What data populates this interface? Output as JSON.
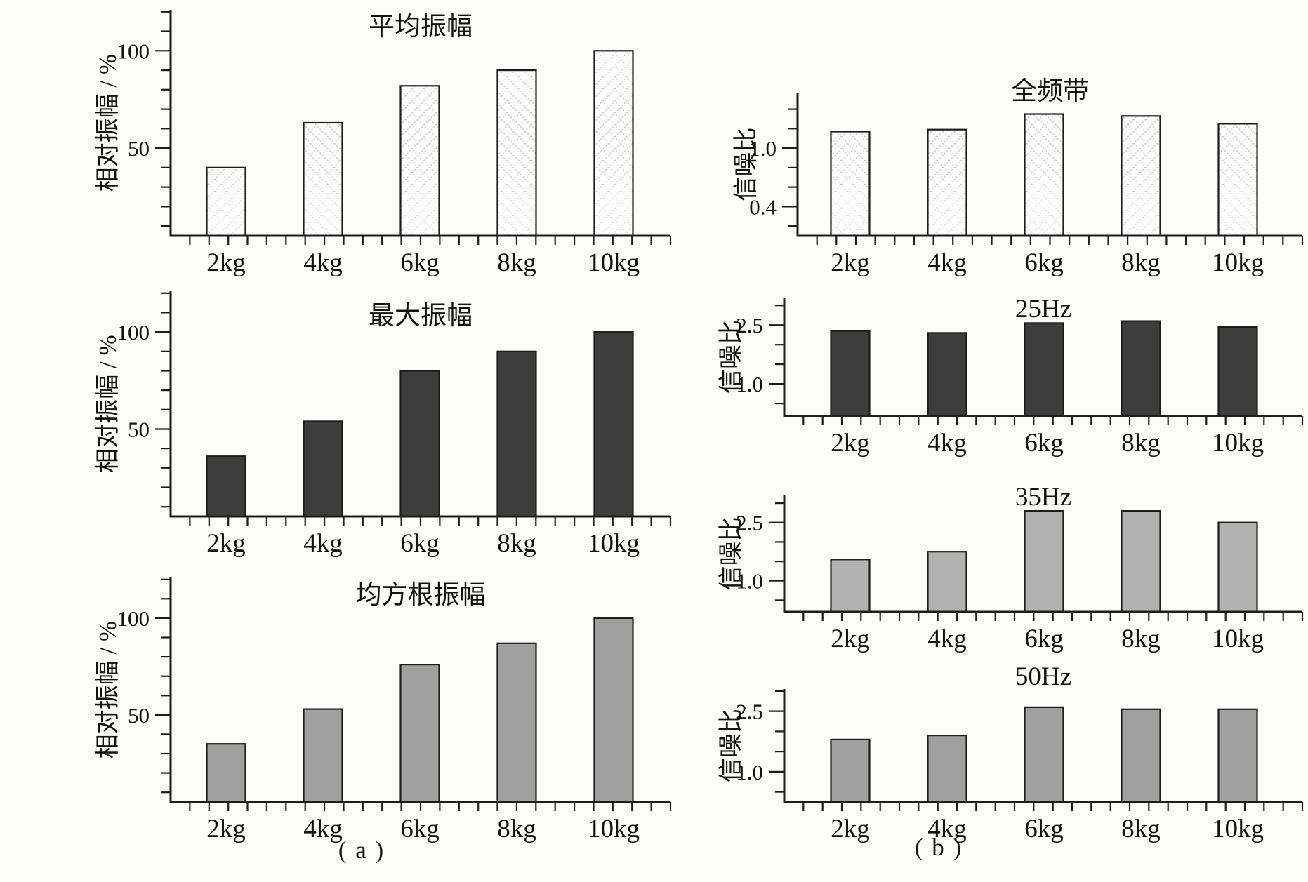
{
  "figure": {
    "description": "Seven bar-chart panels: left column (a) relative vibration amplitude vs load, right column (b) signal-to-noise ratio vs load",
    "background": "#fcfcfa"
  },
  "panel_labels": {
    "a": "( a )",
    "b": "( b )"
  },
  "colors": {
    "background": "#fcfcfa",
    "axis": "#1c1c1c",
    "bar_outline": "#1c1c1c",
    "hatch_fill": "#ffffff",
    "hatch_line": "#c5c5c5",
    "dark": "#3d3d3d",
    "mid_gray": "#a0a0a0",
    "light_gray": "#b2b2b2"
  },
  "chart_data": [
    {
      "id": "a1",
      "panel": "a",
      "type": "bar",
      "title": "平均振幅",
      "ylabel": "相对振幅 / %",
      "categories": [
        "2kg",
        "4kg",
        "6kg",
        "8kg",
        "10kg"
      ],
      "values": [
        40,
        63,
        82,
        90,
        100
      ],
      "ylim": [
        5,
        121
      ],
      "yticks": [
        10,
        20,
        30,
        40,
        50,
        60,
        70,
        80,
        90,
        100,
        110,
        120
      ],
      "ytick_labels": [
        {
          "v": 50,
          "text": "50"
        },
        {
          "v": 100,
          "text": "100"
        }
      ],
      "bar_fill": "crosshatch",
      "grid": false,
      "legend": false
    },
    {
      "id": "a2",
      "panel": "a",
      "type": "bar",
      "title": "最大振幅",
      "ylabel": "相对振幅 / %",
      "categories": [
        "2kg",
        "4kg",
        "6kg",
        "8kg",
        "10kg"
      ],
      "values": [
        36,
        54,
        80,
        90,
        100
      ],
      "ylim": [
        5,
        121
      ],
      "yticks": [
        10,
        20,
        30,
        40,
        50,
        60,
        70,
        80,
        90,
        100,
        110,
        120
      ],
      "ytick_labels": [
        {
          "v": 50,
          "text": "50"
        },
        {
          "v": 100,
          "text": "100"
        }
      ],
      "bar_fill": "dark",
      "grid": false,
      "legend": false
    },
    {
      "id": "a3",
      "panel": "a",
      "type": "bar",
      "title": "均方根振幅",
      "ylabel": "相对振幅 / %",
      "categories": [
        "2kg",
        "4kg",
        "6kg",
        "8kg",
        "10kg"
      ],
      "values": [
        35,
        53,
        76,
        87,
        100
      ],
      "ylim": [
        5,
        121
      ],
      "yticks": [
        10,
        20,
        30,
        40,
        50,
        60,
        70,
        80,
        90,
        100,
        110,
        120
      ],
      "ytick_labels": [
        {
          "v": 50,
          "text": "50"
        },
        {
          "v": 100,
          "text": "100"
        }
      ],
      "bar_fill": "mid_gray",
      "grid": false,
      "legend": false
    },
    {
      "id": "b1",
      "panel": "b",
      "type": "bar",
      "title": "全频带",
      "ylabel": "信噪比",
      "categories": [
        "2kg",
        "4kg",
        "6kg",
        "8kg",
        "10kg"
      ],
      "values": [
        1.17,
        1.19,
        1.35,
        1.33,
        1.25
      ],
      "ylim": [
        0.1,
        1.57
      ],
      "yticks": [
        0.2,
        0.4,
        0.6,
        0.8,
        1.0,
        1.2,
        1.4
      ],
      "ytick_labels": [
        {
          "v": 0.4,
          "text": "0.4"
        },
        {
          "v": 1.0,
          "text": "1.0"
        }
      ],
      "bar_fill": "crosshatch",
      "grid": false,
      "legend": false
    },
    {
      "id": "b2",
      "panel": "b",
      "type": "bar",
      "title": "25Hz",
      "ylabel": "信噪比",
      "categories": [
        "2kg",
        "4kg",
        "6kg",
        "8kg",
        "10kg"
      ],
      "values": [
        2.35,
        2.3,
        2.55,
        2.6,
        2.45
      ],
      "ylim": [
        0.18,
        3.2
      ],
      "yticks": [
        0.5,
        1.0,
        1.5,
        2.0,
        2.5,
        3.0
      ],
      "ytick_labels": [
        {
          "v": 1.0,
          "text": "1.0"
        },
        {
          "v": 2.5,
          "text": "2.5"
        }
      ],
      "bar_fill": "dark",
      "grid": false,
      "legend": false
    },
    {
      "id": "b3",
      "panel": "b",
      "type": "bar",
      "title": "35Hz",
      "ylabel": "信噪比",
      "categories": [
        "2kg",
        "4kg",
        "6kg",
        "8kg",
        "10kg"
      ],
      "values": [
        1.55,
        1.75,
        2.8,
        2.8,
        2.5
      ],
      "ylim": [
        0.2,
        3.2
      ],
      "yticks": [
        0.5,
        1.0,
        1.5,
        2.0,
        2.5,
        3.0
      ],
      "ytick_labels": [
        {
          "v": 1.0,
          "text": "1.0"
        },
        {
          "v": 2.5,
          "text": "2.5"
        }
      ],
      "bar_fill": "light_gray",
      "grid": false,
      "legend": false
    },
    {
      "id": "b4",
      "panel": "b",
      "type": "bar",
      "title": "50Hz",
      "ylabel": "信噪比",
      "categories": [
        "2kg",
        "4kg",
        "6kg",
        "8kg",
        "10kg"
      ],
      "values": [
        1.8,
        1.9,
        2.6,
        2.55,
        2.55
      ],
      "ylim": [
        0.25,
        3.05
      ],
      "yticks": [
        0.5,
        1.0,
        1.5,
        2.0,
        2.5,
        3.0
      ],
      "ytick_labels": [
        {
          "v": 1.0,
          "text": "1.0"
        },
        {
          "v": 2.5,
          "text": "2.5"
        }
      ],
      "bar_fill": "mid_gray",
      "grid": false,
      "legend": false
    }
  ]
}
